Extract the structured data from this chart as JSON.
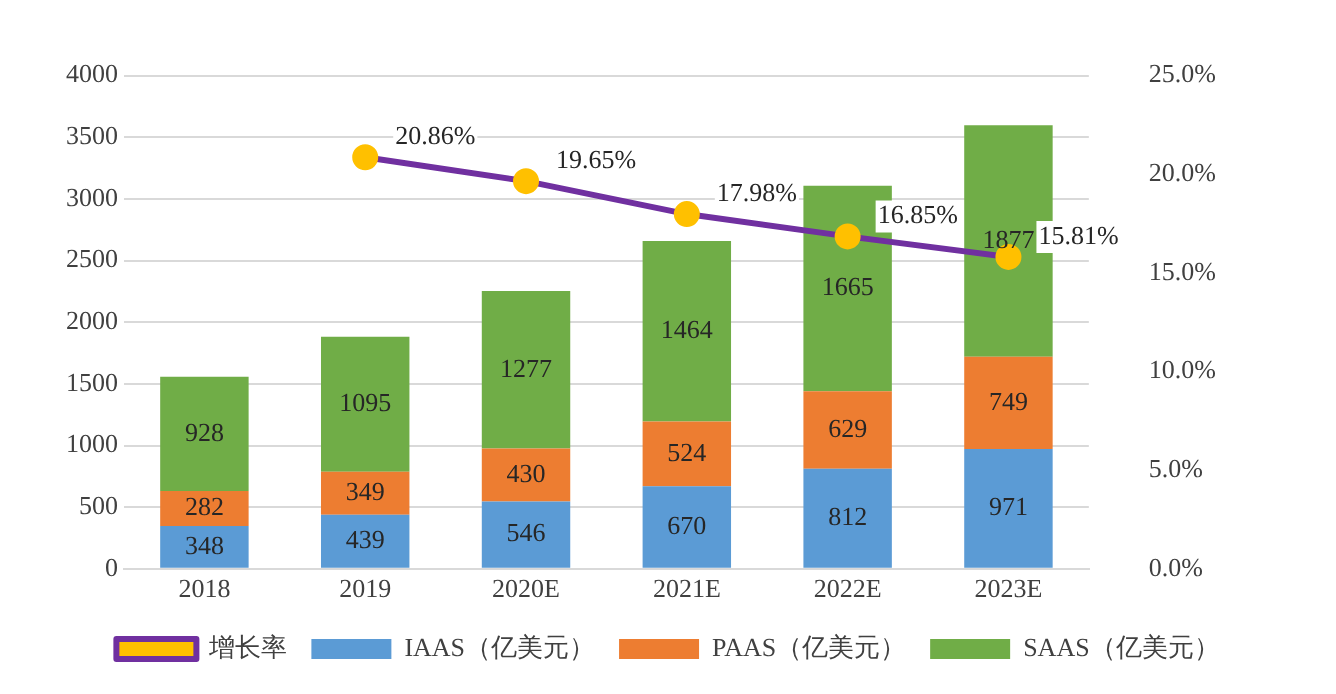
{
  "chart_data": {
    "type": "bar",
    "stacked": true,
    "categories": [
      "2018",
      "2019",
      "2020E",
      "2021E",
      "2022E",
      "2023E"
    ],
    "ylim": [
      0,
      4000
    ],
    "yticks": [
      0,
      500,
      1000,
      1500,
      2000,
      2500,
      3000,
      3500,
      4000
    ],
    "y2lim": [
      0,
      25
    ],
    "y2ticks": [
      {
        "value": 0,
        "label": "0.0%"
      },
      {
        "value": 5,
        "label": "5.0%"
      },
      {
        "value": 10,
        "label": "10.0%"
      },
      {
        "value": 15,
        "label": "15.0%"
      },
      {
        "value": 20,
        "label": "20.0%"
      },
      {
        "value": 25,
        "label": "25.0%"
      }
    ],
    "grid": "y",
    "legend": "bottom",
    "data_labels": true,
    "marker": "circle",
    "series": [
      {
        "name": "IAAS（亿美元）",
        "color": "#5b9bd5",
        "values": [
          348,
          439,
          546,
          670,
          812,
          971
        ]
      },
      {
        "name": "PAAS（亿美元）",
        "color": "#ed7d31",
        "values": [
          282,
          349,
          430,
          524,
          629,
          749
        ]
      },
      {
        "name": "SAAS（亿美元）",
        "color": "#70ad47",
        "values": [
          928,
          1095,
          1277,
          1464,
          1665,
          1877
        ]
      },
      {
        "name": "增长率",
        "type": "line",
        "axis": "y2",
        "color": "#7030a0",
        "colors": [
          null,
          "#ffc000",
          "#ffc000",
          "#ffc000",
          "#ffc000",
          "#ffc000"
        ],
        "values": [
          null,
          20.86,
          19.65,
          17.98,
          16.85,
          15.81
        ],
        "value_labels": [
          null,
          "20.86%",
          "19.65%",
          "17.98%",
          "16.85%",
          "15.81%"
        ]
      }
    ]
  }
}
